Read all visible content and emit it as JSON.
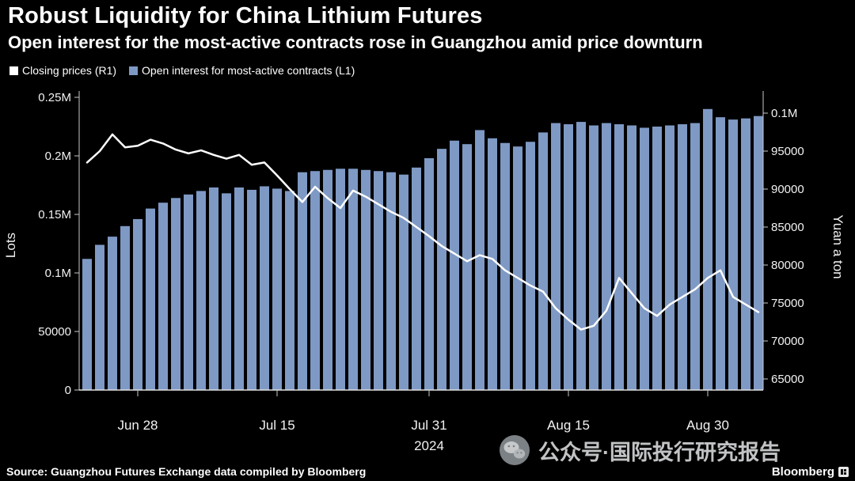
{
  "header": {
    "title": "Robust Liquidity for China Lithium Futures",
    "subtitle": "Open interest for the most-active contracts rose in Guangzhou amid price downturn"
  },
  "legend": [
    {
      "label": "Closing prices (R1)",
      "color": "#ffffff"
    },
    {
      "label": "Open interest for most-active contracts (L1)",
      "color": "#7e99c4"
    }
  ],
  "chart_data": {
    "type": "combo",
    "title": "Robust Liquidity for China Lithium Futures",
    "subtitle": "Open interest for the most-active contracts rose in Guangzhou amid price downturn",
    "grid": false,
    "legend_position": "top-left",
    "background": "#000000",
    "categories": [
      "Jun 24",
      "Jun 25",
      "Jun 26",
      "Jun 27",
      "Jun 28",
      "Jul 1",
      "Jul 2",
      "Jul 3",
      "Jul 4",
      "Jul 5",
      "Jul 8",
      "Jul 9",
      "Jul 10",
      "Jul 11",
      "Jul 12",
      "Jul 15",
      "Jul 16",
      "Jul 17",
      "Jul 18",
      "Jul 19",
      "Jul 22",
      "Jul 23",
      "Jul 24",
      "Jul 25",
      "Jul 26",
      "Jul 29",
      "Jul 30",
      "Jul 31",
      "Aug 1",
      "Aug 2",
      "Aug 5",
      "Aug 6",
      "Aug 7",
      "Aug 8",
      "Aug 9",
      "Aug 12",
      "Aug 13",
      "Aug 14",
      "Aug 15",
      "Aug 16",
      "Aug 19",
      "Aug 20",
      "Aug 21",
      "Aug 22",
      "Aug 23",
      "Aug 26",
      "Aug 27",
      "Aug 28",
      "Aug 29",
      "Aug 30",
      "Sep 2",
      "Sep 3",
      "Sep 4",
      "Sep 5"
    ],
    "series": [
      {
        "name": "Open interest for most-active contracts (L1)",
        "type": "bar",
        "axis": "left",
        "color": "#7e99c4",
        "values": [
          112000,
          124000,
          131000,
          140000,
          146000,
          155000,
          160000,
          164000,
          167000,
          170000,
          173000,
          168000,
          173000,
          171000,
          174000,
          172000,
          170000,
          186000,
          187000,
          188000,
          189000,
          189000,
          188000,
          187000,
          186000,
          184000,
          190000,
          198000,
          206000,
          213000,
          210000,
          222000,
          215000,
          211000,
          208000,
          212000,
          220000,
          228000,
          227000,
          229000,
          226000,
          228000,
          227000,
          226000,
          224000,
          225000,
          226000,
          227000,
          228000,
          240000,
          233000,
          231000,
          232000,
          234000
        ]
      },
      {
        "name": "Closing prices (R1)",
        "type": "line",
        "axis": "right",
        "color": "#ffffff",
        "values": [
          93500,
          95000,
          97200,
          95500,
          95700,
          96500,
          96000,
          95200,
          94700,
          95100,
          94500,
          94000,
          94500,
          93200,
          93500,
          91800,
          90000,
          88300,
          90300,
          88800,
          87500,
          89800,
          89000,
          88000,
          87000,
          86200,
          85000,
          83800,
          82500,
          81500,
          80500,
          81300,
          80800,
          79300,
          78300,
          77300,
          76500,
          74300,
          72800,
          71500,
          72000,
          74000,
          78300,
          76300,
          74300,
          73300,
          74800,
          75800,
          76800,
          78300,
          79300,
          75800,
          74800,
          73800
        ]
      }
    ],
    "left_axis": {
      "label": "Lots",
      "range": [
        0,
        260000
      ],
      "tick_values": [
        0,
        50000,
        100000,
        150000,
        200000,
        250000
      ],
      "tick_labels": [
        "0",
        "50000",
        "0.1M",
        "0.15M",
        "0.2M",
        "0.25M"
      ]
    },
    "right_axis": {
      "label": "Yuan a ton",
      "range": [
        65000,
        101500
      ],
      "tick_values": [
        65000,
        70000,
        75000,
        80000,
        85000,
        90000,
        95000,
        100000
      ],
      "tick_labels": [
        "65000",
        "70000",
        "75000",
        "80000",
        "85000",
        "90000",
        "95000",
        "0.1M"
      ]
    },
    "x_ticks": [
      {
        "index": 4,
        "label": "Jun 28"
      },
      {
        "index": 15,
        "label": "Jul 15"
      },
      {
        "index": 27,
        "label": "Jul 31"
      },
      {
        "index": 38,
        "label": "Aug 15"
      },
      {
        "index": 49,
        "label": "Aug 30"
      }
    ],
    "year_label": "2024"
  },
  "watermark": {
    "text": "公众号·国际投行研究报告",
    "icon": "wechat-icon"
  },
  "footer": {
    "source": "Source: Guangzhou Futures Exchange data compiled by Bloomberg",
    "brand": "Bloomberg"
  }
}
